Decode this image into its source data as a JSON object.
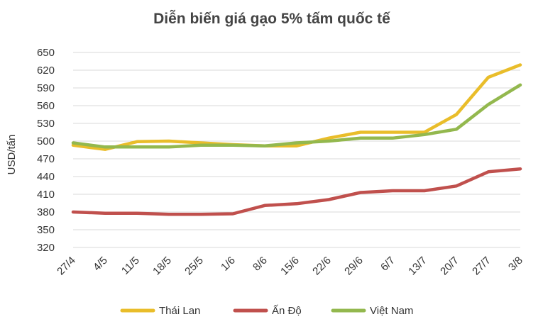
{
  "chart_data": {
    "type": "line",
    "title": "Diễn biến giá gạo 5% tấm quốc tế",
    "xlabel": "",
    "ylabel": "USD/tấn",
    "ylim": [
      320,
      650
    ],
    "yticks": [
      650,
      620,
      590,
      560,
      530,
      500,
      470,
      440,
      410,
      380,
      350,
      320
    ],
    "grid": true,
    "legend_position": "bottom",
    "categories": [
      "27/4",
      "4/5",
      "11/5",
      "18/5",
      "25/5",
      "1/6",
      "8/6",
      "15/6",
      "22/6",
      "29/6",
      "6/7",
      "13/7",
      "20/7",
      "27/7",
      "3/8"
    ],
    "series": [
      {
        "name": "Thái Lan",
        "color": "#e9bd2a",
        "values": [
          493,
          486,
          499,
          500,
          497,
          494,
          492,
          492,
          505,
          515,
          515,
          515,
          545,
          608,
          629
        ]
      },
      {
        "name": "Ấn Độ",
        "color": "#c0504d",
        "values": [
          380,
          378,
          378,
          376,
          376,
          377,
          391,
          394,
          401,
          413,
          416,
          416,
          424,
          448,
          453
        ]
      },
      {
        "name": "Việt Nam",
        "color": "#93b84e",
        "values": [
          497,
          490,
          490,
          490,
          493,
          493,
          492,
          497,
          500,
          505,
          505,
          511,
          520,
          562,
          595
        ]
      }
    ]
  }
}
